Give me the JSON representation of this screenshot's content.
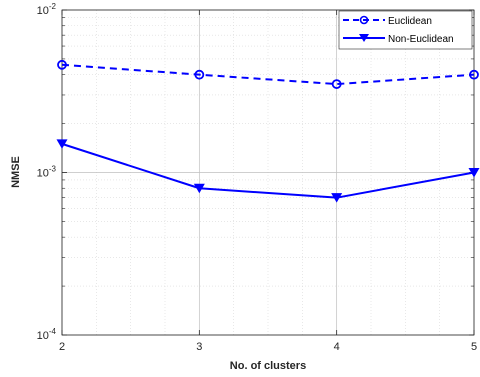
{
  "chart_data": {
    "type": "line",
    "xlabel": "No. of clusters",
    "ylabel": "NMSE",
    "y_scale": "log",
    "ylim": [
      0.0001,
      0.01
    ],
    "xlim": [
      2,
      5
    ],
    "x": [
      2,
      3,
      4,
      5
    ],
    "x_tick_labels": [
      "2",
      "3",
      "4",
      "5"
    ],
    "y_ticks": [
      {
        "value": 0.0001,
        "base": "10",
        "exp": "-4"
      },
      {
        "value": 0.001,
        "base": "10",
        "exp": "-3"
      },
      {
        "value": 0.01,
        "base": "10",
        "exp": "-2"
      }
    ],
    "grid": true,
    "minor_grid": true,
    "legend_position": "top-right",
    "series": [
      {
        "name": "Euclidean",
        "values": [
          0.0046,
          0.004,
          0.0035,
          0.004
        ],
        "color": "#0000ff",
        "line_style": "dashed",
        "marker": "circle"
      },
      {
        "name": "Non-Euclidean",
        "values": [
          0.0015,
          0.0008,
          0.0007,
          0.001
        ],
        "color": "#0000ff",
        "line_style": "solid",
        "marker": "triangle-down"
      }
    ]
  }
}
